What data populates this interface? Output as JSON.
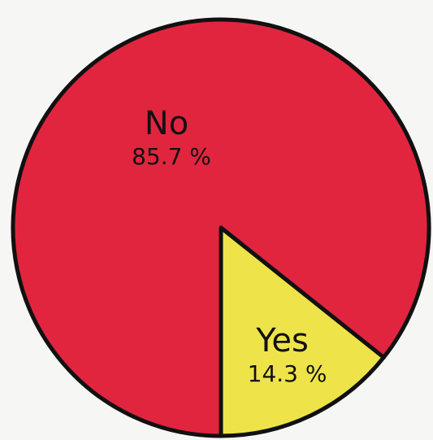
{
  "chart_data": {
    "type": "pie",
    "categories": [
      "No",
      "Yes"
    ],
    "values": [
      85.7,
      14.3
    ],
    "value_labels": [
      "85.7 %",
      "14.3 %"
    ],
    "colors": [
      "#e2253f",
      "#eee44a"
    ]
  }
}
